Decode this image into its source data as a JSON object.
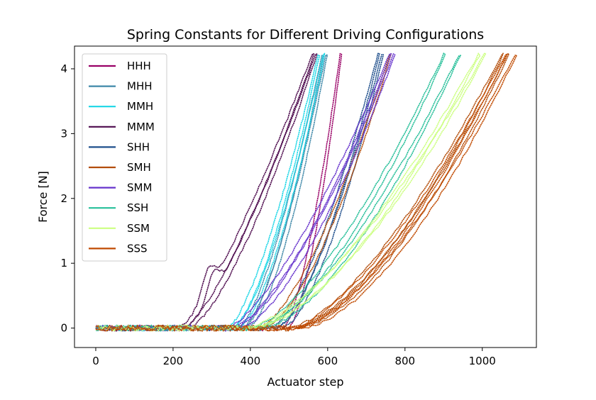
{
  "chart_data": {
    "type": "line",
    "title": "Spring Constants for Different Driving Configurations",
    "xlabel": "Actuator step",
    "ylabel": "Force [N]",
    "xlim": [
      -55,
      1140
    ],
    "ylim": [
      -0.3,
      4.35
    ],
    "xticks": [
      0,
      200,
      400,
      600,
      800,
      1000
    ],
    "yticks": [
      0,
      1,
      2,
      3,
      4
    ],
    "grid": false,
    "legend_position": "top-left",
    "series": [
      {
        "name": "HHH",
        "color": "#990066",
        "loops": [
          {
            "start": 485,
            "end": 632,
            "exp": 1.5
          }
        ]
      },
      {
        "name": "MHH",
        "color": "#3f88a8",
        "loops": [
          {
            "start": 380,
            "end": 595,
            "exp": 1.5
          },
          {
            "start": 370,
            "end": 585,
            "exp": 1.45
          }
        ]
      },
      {
        "name": "MMH",
        "color": "#1ad6e6",
        "loops": [
          {
            "start": 355,
            "end": 588,
            "exp": 1.5
          },
          {
            "start": 340,
            "end": 575,
            "exp": 1.45
          }
        ]
      },
      {
        "name": "MMM",
        "color": "#4d0a4d",
        "loops": [
          {
            "start": 230,
            "end": 568,
            "exp": 1.35,
            "bump": true
          },
          {
            "start": 215,
            "end": 560,
            "exp": 1.3,
            "bump": true
          }
        ]
      },
      {
        "name": "SHH",
        "color": "#1f4f8c",
        "loops": [
          {
            "start": 470,
            "end": 740,
            "exp": 1.5
          },
          {
            "start": 455,
            "end": 730,
            "exp": 1.45
          }
        ]
      },
      {
        "name": "SMH",
        "color": "#b34d0a",
        "loops": [
          {
            "start": 420,
            "end": 760,
            "exp": 1.5
          },
          {
            "start": 510,
            "end": 1065,
            "exp": 1.55
          },
          {
            "start": 500,
            "end": 1050,
            "exp": 1.5
          }
        ]
      },
      {
        "name": "SMM",
        "color": "#6633cc",
        "loops": [
          {
            "start": 360,
            "end": 770,
            "exp": 1.45
          },
          {
            "start": 340,
            "end": 760,
            "exp": 1.4
          }
        ]
      },
      {
        "name": "SSH",
        "color": "#26bf99",
        "loops": [
          {
            "start": 400,
            "end": 900,
            "exp": 1.5
          },
          {
            "start": 420,
            "end": 940,
            "exp": 1.5
          }
        ]
      },
      {
        "name": "SSM",
        "color": "#ccff80",
        "loops": [
          {
            "start": 380,
            "end": 1005,
            "exp": 1.55
          },
          {
            "start": 400,
            "end": 990,
            "exp": 1.5
          }
        ]
      },
      {
        "name": "SSS",
        "color": "#c04a00",
        "loops": [
          {
            "start": 520,
            "end": 1085,
            "exp": 1.55
          },
          {
            "start": 505,
            "end": 1060,
            "exp": 1.5
          }
        ]
      }
    ]
  }
}
